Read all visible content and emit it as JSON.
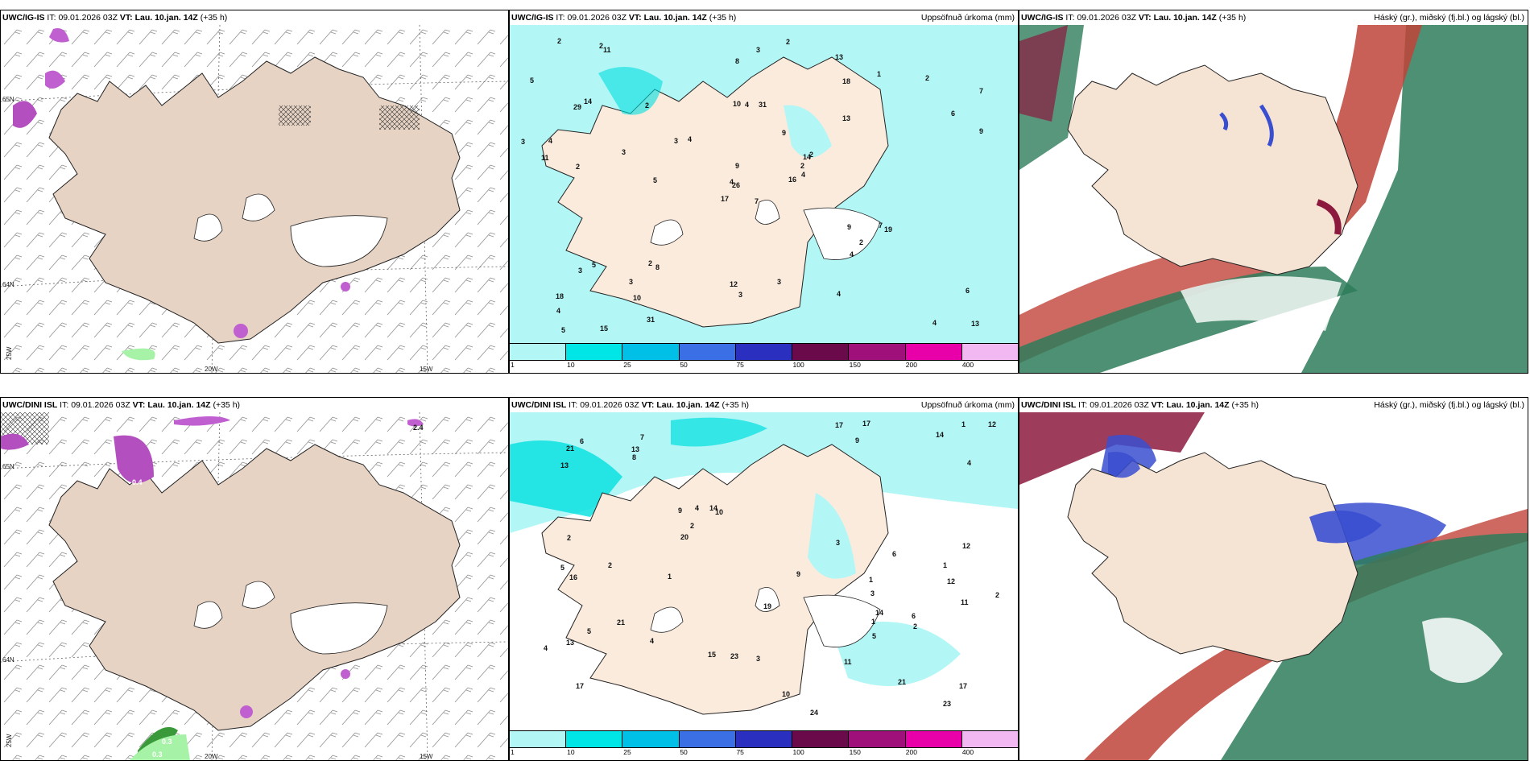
{
  "panels": [
    {
      "model": "UWC/IG-IS",
      "it_prefix": "IT:",
      "it": "09.01.2026 03Z",
      "vt_prefix": "VT:",
      "vt": "Lau. 10.jan. 14Z",
      "lead": "(+35 h)",
      "right": ""
    },
    {
      "model": "UWC/IG-IS",
      "it_prefix": "IT:",
      "it": "09.01.2026 03Z",
      "vt_prefix": "VT:",
      "vt": "Lau. 10.jan. 14Z",
      "lead": "(+35 h)",
      "right": "Uppsöfnuð úrkoma (mm)"
    },
    {
      "model": "UWC/IG-IS",
      "it_prefix": "IT:",
      "it": "09.01.2026 03Z",
      "vt_prefix": "VT:",
      "vt": "Lau. 10.jan. 14Z",
      "lead": "(+35 h)",
      "right": "Háský (gr.), miðský (fj.bl.) og lágský (bl.)"
    },
    {
      "model": "UWC/DINI ISL",
      "it_prefix": "IT:",
      "it": "09.01.2026 03Z",
      "vt_prefix": "VT:",
      "vt": "Lau. 10.jan. 14Z",
      "lead": "(+35 h)",
      "right": ""
    },
    {
      "model": "UWC/DINI ISL",
      "it_prefix": "IT:",
      "it": "09.01.2026 03Z",
      "vt_prefix": "VT:",
      "vt": "Lau. 10.jan. 14Z",
      "lead": "(+35 h)",
      "right": "Uppsöfnuð úrkoma (mm)"
    },
    {
      "model": "UWC/DINI ISL",
      "it_prefix": "IT:",
      "it": "09.01.2026 03Z",
      "vt_prefix": "VT:",
      "vt": "Lau. 10.jan. 14Z",
      "lead": "(+35 h)",
      "right": "Háský (gr.), miðský (fj.bl.) og lágský (bl.)"
    }
  ],
  "axis_labels": {
    "lon_20": "20W",
    "lon_15": "15W",
    "lon_25": "25W",
    "lat_65": "65N",
    "lat_64": "64N"
  },
  "colorbar": {
    "ticks": [
      "1",
      "10",
      "25",
      "50",
      "75",
      "100",
      "150",
      "200",
      "400"
    ],
    "colors": [
      "#b3f6f6",
      "#00e5e5",
      "#00c0e8",
      "#3a6fe6",
      "#2a2fbf",
      "#6a0a4a",
      "#a0107a",
      "#e800a8",
      "#f2b8f2"
    ]
  },
  "colors": {
    "land": "#f5e3d3",
    "land_dark": "#e6d3c4",
    "precip_light": "#b3f6f6",
    "precip_mid": "#00e0e0",
    "high_cloud": "#2e7d5b",
    "mid_cloud": "#a8323a",
    "low_cloud": "#3a4fd0"
  },
  "precip_top": [
    "7",
    "29",
    "26",
    "18",
    "14",
    "8",
    "13",
    "31",
    "18",
    "16",
    "11",
    "13",
    "2",
    "7",
    "17",
    "13",
    "15",
    "10",
    "9",
    "5",
    "4",
    "4",
    "10",
    "4",
    "2",
    "19",
    "14",
    "8",
    "11",
    "9",
    "9",
    "4",
    "12",
    "9",
    "2",
    "1",
    "2",
    "4",
    "6",
    "7",
    "2",
    "3",
    "3",
    "4",
    "31",
    "3",
    "2",
    "5",
    "3",
    "4",
    "3",
    "6",
    "5",
    "2",
    "4",
    "3",
    "2",
    "2",
    "3",
    "2",
    "3",
    "5",
    "4"
  ],
  "precip_bottom": [
    "3",
    "12",
    "17",
    "7",
    "10",
    "21",
    "13",
    "9",
    "9",
    "24",
    "13",
    "5",
    "21",
    "17",
    "15",
    "12",
    "19",
    "9",
    "14",
    "21",
    "12",
    "14",
    "20",
    "11",
    "17",
    "13",
    "14",
    "16",
    "8",
    "6",
    "10",
    "11",
    "2",
    "1",
    "1",
    "2",
    "1",
    "2",
    "3",
    "5",
    "4",
    "17",
    "23",
    "23",
    "6",
    "4",
    "4",
    "6",
    "3",
    "2",
    "2",
    "4",
    "1",
    "1",
    "5"
  ],
  "wind_labels_bottom": [
    "2.4",
    "0.4",
    "0.3",
    "0.3"
  ]
}
